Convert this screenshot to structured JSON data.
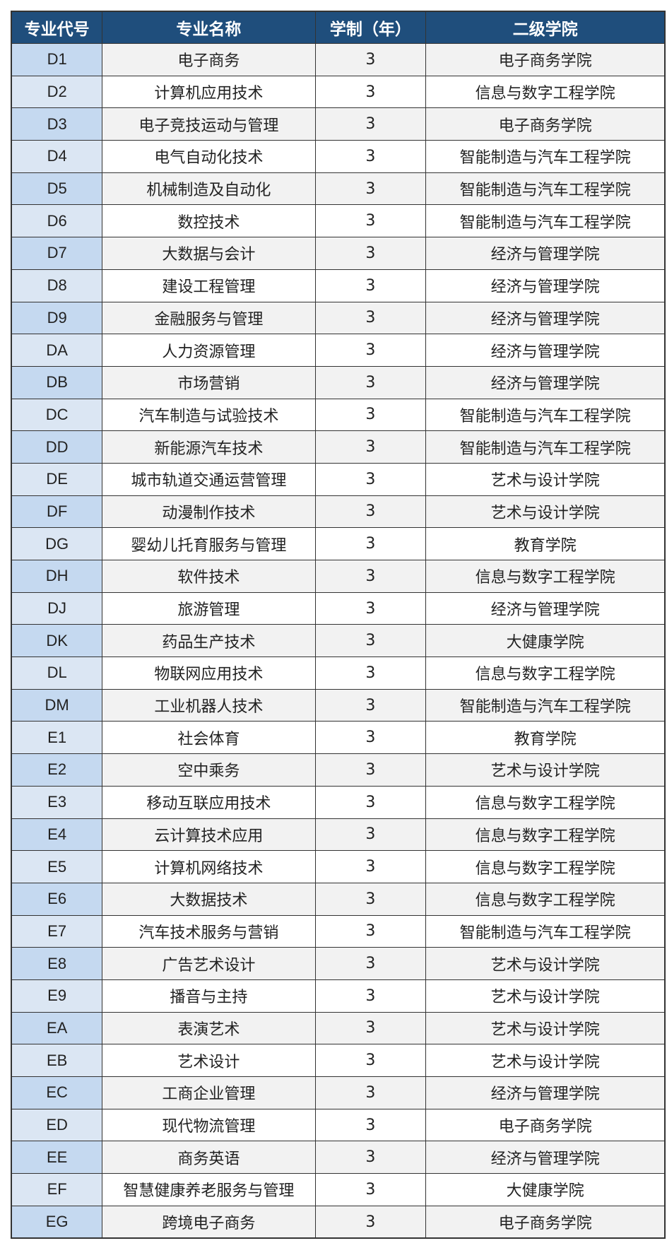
{
  "table": {
    "headers": [
      "专业代号",
      "专业名称",
      "学制（年）",
      "二级学院"
    ],
    "rows": [
      [
        "D1",
        "电子商务",
        "3",
        "电子商务学院"
      ],
      [
        "D2",
        "计算机应用技术",
        "3",
        "信息与数字工程学院"
      ],
      [
        "D3",
        "电子竞技运动与管理",
        "3",
        "电子商务学院"
      ],
      [
        "D4",
        "电气自动化技术",
        "3",
        "智能制造与汽车工程学院"
      ],
      [
        "D5",
        "机械制造及自动化",
        "3",
        "智能制造与汽车工程学院"
      ],
      [
        "D6",
        "数控技术",
        "3",
        "智能制造与汽车工程学院"
      ],
      [
        "D7",
        "大数据与会计",
        "3",
        "经济与管理学院"
      ],
      [
        "D8",
        "建设工程管理",
        "3",
        "经济与管理学院"
      ],
      [
        "D9",
        "金融服务与管理",
        "3",
        "经济与管理学院"
      ],
      [
        "DA",
        "人力资源管理",
        "3",
        "经济与管理学院"
      ],
      [
        "DB",
        "市场营销",
        "3",
        "经济与管理学院"
      ],
      [
        "DC",
        "汽车制造与试验技术",
        "3",
        "智能制造与汽车工程学院"
      ],
      [
        "DD",
        "新能源汽车技术",
        "3",
        "智能制造与汽车工程学院"
      ],
      [
        "DE",
        "城市轨道交通运营管理",
        "3",
        "艺术与设计学院"
      ],
      [
        "DF",
        "动漫制作技术",
        "3",
        "艺术与设计学院"
      ],
      [
        "DG",
        "婴幼儿托育服务与管理",
        "3",
        "教育学院"
      ],
      [
        "DH",
        "软件技术",
        "3",
        "信息与数字工程学院"
      ],
      [
        "DJ",
        "旅游管理",
        "3",
        "经济与管理学院"
      ],
      [
        "DK",
        "药品生产技术",
        "3",
        "大健康学院"
      ],
      [
        "DL",
        "物联网应用技术",
        "3",
        "信息与数字工程学院"
      ],
      [
        "DM",
        "工业机器人技术",
        "3",
        "智能制造与汽车工程学院"
      ],
      [
        "E1",
        "社会体育",
        "3",
        "教育学院"
      ],
      [
        "E2",
        "空中乘务",
        "3",
        "艺术与设计学院"
      ],
      [
        "E3",
        "移动互联应用技术",
        "3",
        "信息与数字工程学院"
      ],
      [
        "E4",
        "云计算技术应用",
        "3",
        "信息与数字工程学院"
      ],
      [
        "E5",
        "计算机网络技术",
        "3",
        "信息与数字工程学院"
      ],
      [
        "E6",
        "大数据技术",
        "3",
        "信息与数字工程学院"
      ],
      [
        "E7",
        "汽车技术服务与营销",
        "3",
        "智能制造与汽车工程学院"
      ],
      [
        "E8",
        "广告艺术设计",
        "3",
        "艺术与设计学院"
      ],
      [
        "E9",
        "播音与主持",
        "3",
        "艺术与设计学院"
      ],
      [
        "EA",
        "表演艺术",
        "3",
        "艺术与设计学院"
      ],
      [
        "EB",
        "艺术设计",
        "3",
        "艺术与设计学院"
      ],
      [
        "EC",
        "工商企业管理",
        "3",
        "经济与管理学院"
      ],
      [
        "ED",
        "现代物流管理",
        "3",
        "电子商务学院"
      ],
      [
        "EE",
        "商务英语",
        "3",
        "经济与管理学院"
      ],
      [
        "EF",
        "智慧健康养老服务与管理",
        "3",
        "大健康学院"
      ],
      [
        "EG",
        "跨境电子商务",
        "3",
        "电子商务学院"
      ]
    ]
  }
}
